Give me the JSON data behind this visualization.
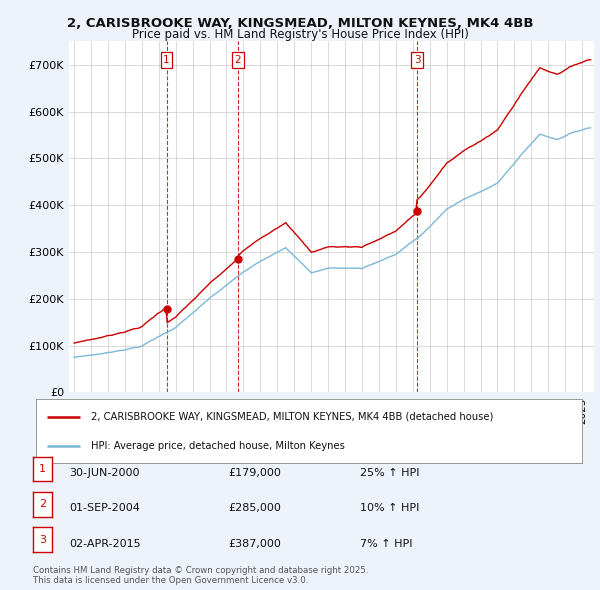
{
  "title_line1": "2, CARISBROOKE WAY, KINGSMEAD, MILTON KEYNES, MK4 4BB",
  "title_line2": "Price paid vs. HM Land Registry's House Price Index (HPI)",
  "ytick_labels": [
    "£0",
    "£100K",
    "£200K",
    "£300K",
    "£400K",
    "£500K",
    "£600K",
    "£700K"
  ],
  "ytick_values": [
    0,
    100000,
    200000,
    300000,
    400000,
    500000,
    600000,
    700000
  ],
  "ylim": [
    0,
    750000
  ],
  "sale_nums": [
    2000.458,
    2004.667,
    2015.25
  ],
  "sale_prices": [
    179000,
    285000,
    387000
  ],
  "sale_labels": [
    "1",
    "2",
    "3"
  ],
  "sale_pct": [
    "25%",
    "10%",
    "7%"
  ],
  "sale_date_labels": [
    "30-JUN-2000",
    "01-SEP-2004",
    "02-APR-2015"
  ],
  "sale_price_labels": [
    "£179,000",
    "£285,000",
    "£387,000"
  ],
  "vline_color": "#cc0000",
  "line_red_color": "#cc0000",
  "line_blue_color": "#7ab8d9",
  "legend_label_red": "2, CARISBROOKE WAY, KINGSMEAD, MILTON KEYNES, MK4 4BB (detached house)",
  "legend_label_blue": "HPI: Average price, detached house, Milton Keynes",
  "footer_text": "Contains HM Land Registry data © Crown copyright and database right 2025.\nThis data is licensed under the Open Government Licence v3.0.",
  "background_color": "#eef2fb",
  "plot_bg_color": "#ffffff",
  "grid_color": "#cccccc",
  "xlim_left": 1994.7,
  "xlim_right": 2025.7
}
